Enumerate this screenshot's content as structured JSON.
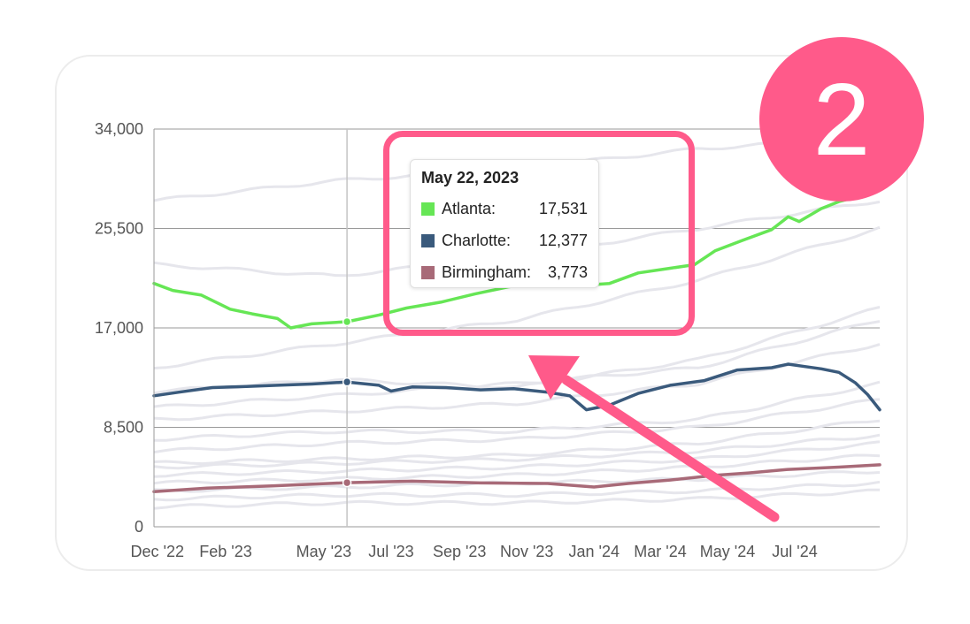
{
  "badge": {
    "label": "2",
    "color": "#ff5a8a"
  },
  "tooltip": {
    "date": "May 22, 2023",
    "rows": [
      {
        "name": "Atlanta:",
        "value": "17,531",
        "color": "#66e655"
      },
      {
        "name": "Charlotte:",
        "value": "12,377",
        "color": "#3a5a7c"
      },
      {
        "name": "Birmingham:",
        "value": "3,773",
        "color": "#a86a78"
      }
    ]
  },
  "chart_data": {
    "type": "line",
    "title": "",
    "xlabel": "",
    "ylabel": "",
    "x_start": "2022-11-28",
    "x_end": "2024-09-16",
    "x_ticks": [
      {
        "label": "Dec '22",
        "date": "2022-12-01"
      },
      {
        "label": "Feb '23",
        "date": "2023-02-01"
      },
      {
        "label": "May '23",
        "date": "2023-05-01"
      },
      {
        "label": "Jul '23",
        "date": "2023-07-01"
      },
      {
        "label": "Sep '23",
        "date": "2023-09-01"
      },
      {
        "label": "Nov '23",
        "date": "2023-11-01"
      },
      {
        "label": "Jan '24",
        "date": "2024-01-01"
      },
      {
        "label": "Mar '24",
        "date": "2024-03-01"
      },
      {
        "label": "May '24",
        "date": "2024-05-01"
      },
      {
        "label": "Jul '24",
        "date": "2024-07-01"
      }
    ],
    "y_ticks": [
      {
        "value": 0,
        "label": "0"
      },
      {
        "value": 8500,
        "label": "8,500"
      },
      {
        "value": 17000,
        "label": "17,000"
      },
      {
        "value": 25500,
        "label": "25,500"
      },
      {
        "value": 34000,
        "label": "34,000"
      }
    ],
    "ylim": [
      0,
      34000
    ],
    "grid": "horizontal",
    "hover_date": "2023-05-22",
    "series": [
      {
        "name": "Atlanta",
        "color": "#66e655",
        "points": [
          [
            "2022-11-28",
            20800
          ],
          [
            "2022-12-15",
            20200
          ],
          [
            "2023-01-10",
            19800
          ],
          [
            "2023-02-05",
            18600
          ],
          [
            "2023-02-25",
            18200
          ],
          [
            "2023-03-20",
            17800
          ],
          [
            "2023-04-01",
            17000
          ],
          [
            "2023-04-20",
            17350
          ],
          [
            "2023-05-22",
            17531
          ],
          [
            "2023-06-20",
            18100
          ],
          [
            "2023-07-15",
            18700
          ],
          [
            "2023-08-15",
            19200
          ],
          [
            "2023-09-15",
            19900
          ],
          [
            "2023-10-15",
            20500
          ],
          [
            "2023-11-15",
            20900
          ],
          [
            "2023-12-15",
            20600
          ],
          [
            "2024-01-15",
            20800
          ],
          [
            "2024-02-10",
            21700
          ],
          [
            "2024-03-10",
            22100
          ],
          [
            "2024-04-01",
            22400
          ],
          [
            "2024-04-20",
            23600
          ],
          [
            "2024-05-15",
            24500
          ],
          [
            "2024-06-10",
            25400
          ],
          [
            "2024-06-25",
            26500
          ],
          [
            "2024-07-05",
            26100
          ],
          [
            "2024-07-25",
            27200
          ],
          [
            "2024-08-10",
            27800
          ],
          [
            "2024-08-30",
            28300
          ],
          [
            "2024-09-16",
            28800
          ]
        ]
      },
      {
        "name": "Charlotte",
        "color": "#3a5a7c",
        "points": [
          [
            "2022-11-28",
            11200
          ],
          [
            "2022-12-20",
            11500
          ],
          [
            "2023-01-20",
            11900
          ],
          [
            "2023-02-20",
            12000
          ],
          [
            "2023-03-20",
            12100
          ],
          [
            "2023-04-20",
            12200
          ],
          [
            "2023-05-22",
            12377
          ],
          [
            "2023-06-20",
            12100
          ],
          [
            "2023-07-01",
            11600
          ],
          [
            "2023-07-20",
            11950
          ],
          [
            "2023-08-20",
            11900
          ],
          [
            "2023-09-20",
            11700
          ],
          [
            "2023-10-20",
            11800
          ],
          [
            "2023-11-20",
            11500
          ],
          [
            "2023-12-10",
            11200
          ],
          [
            "2023-12-25",
            10000
          ],
          [
            "2024-01-15",
            10400
          ],
          [
            "2024-02-10",
            11400
          ],
          [
            "2024-03-10",
            12100
          ],
          [
            "2024-04-10",
            12500
          ],
          [
            "2024-05-10",
            13400
          ],
          [
            "2024-06-10",
            13600
          ],
          [
            "2024-06-25",
            13900
          ],
          [
            "2024-07-10",
            13700
          ],
          [
            "2024-07-25",
            13500
          ],
          [
            "2024-08-10",
            13200
          ],
          [
            "2024-08-25",
            12300
          ],
          [
            "2024-09-05",
            11300
          ],
          [
            "2024-09-16",
            10000
          ]
        ]
      },
      {
        "name": "Birmingham",
        "color": "#a86a78",
        "points": [
          [
            "2022-11-28",
            3000
          ],
          [
            "2023-01-15",
            3300
          ],
          [
            "2023-03-15",
            3500
          ],
          [
            "2023-05-22",
            3773
          ],
          [
            "2023-07-20",
            3900
          ],
          [
            "2023-09-20",
            3750
          ],
          [
            "2023-11-20",
            3700
          ],
          [
            "2024-01-01",
            3400
          ],
          [
            "2024-02-01",
            3700
          ],
          [
            "2024-03-10",
            4000
          ],
          [
            "2024-04-20",
            4400
          ],
          [
            "2024-05-20",
            4600
          ],
          [
            "2024-06-25",
            4900
          ],
          [
            "2024-08-10",
            5100
          ],
          [
            "2024-09-16",
            5300
          ]
        ]
      }
    ]
  }
}
